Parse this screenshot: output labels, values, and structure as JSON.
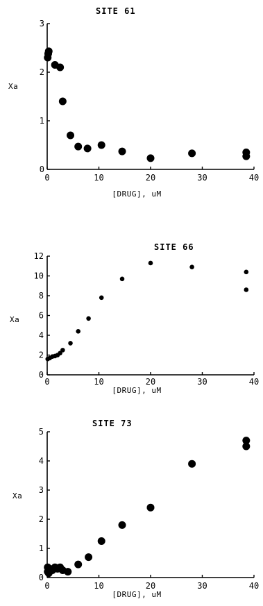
{
  "chart_data": [
    {
      "type": "scatter",
      "title": "SITE 61",
      "xlabel": "[DRUG], uM",
      "ylabel": "Xa",
      "xlim": [
        0,
        40
      ],
      "ylim": [
        0,
        3
      ],
      "xticks": [
        0,
        10,
        20,
        30,
        40
      ],
      "xtick_labels": [
        "0",
        "10",
        "20",
        "30",
        "40"
      ],
      "yticks": [
        0,
        1,
        2,
        3
      ],
      "ytick_labels": [
        "0",
        "1",
        "2",
        "3"
      ],
      "series": [
        {
          "x": [
            0.1,
            0.2,
            0.3,
            1.5,
            2.5,
            3.0,
            4.5,
            6.0,
            7.8,
            10.5,
            14.5,
            20.0,
            28.0,
            38.5,
            38.5
          ],
          "y": [
            2.3,
            2.38,
            2.43,
            2.15,
            2.1,
            1.4,
            0.7,
            0.47,
            0.43,
            0.5,
            0.37,
            0.23,
            0.33,
            0.35,
            0.27
          ]
        }
      ],
      "grid": false,
      "marker_size": 5.5
    },
    {
      "type": "scatter",
      "title": "SITE 66",
      "xlabel": "[DRUG], uM",
      "ylabel": "Xa",
      "xlim": [
        0,
        40
      ],
      "ylim": [
        0,
        12
      ],
      "xticks": [
        0,
        10,
        20,
        30,
        40
      ],
      "xtick_labels": [
        "0",
        "10",
        "20",
        "30",
        "40"
      ],
      "yticks": [
        0,
        2,
        4,
        6,
        8,
        10,
        12
      ],
      "ytick_labels": [
        "0",
        "2",
        "4",
        "6",
        "8",
        "10",
        "12"
      ],
      "series": [
        {
          "x": [
            0.1,
            0.5,
            1.0,
            1.5,
            2.0,
            2.5,
            3.0,
            4.5,
            6.0,
            8.0,
            10.5,
            14.5,
            20.0,
            28.0,
            38.5,
            38.5
          ],
          "y": [
            1.6,
            1.7,
            1.85,
            1.9,
            2.0,
            2.2,
            2.5,
            3.2,
            4.4,
            5.7,
            7.8,
            9.7,
            11.3,
            10.9,
            10.4,
            8.6
          ]
        }
      ],
      "grid": false,
      "marker_size": 3.3
    },
    {
      "type": "scatter",
      "title": "SITE 73",
      "xlabel": "[DRUG], uM",
      "ylabel": "Xa",
      "xlim": [
        0,
        40
      ],
      "ylim": [
        0,
        5
      ],
      "xticks": [
        0,
        10,
        20,
        30,
        40
      ],
      "xtick_labels": [
        "0",
        "10",
        "20",
        "30",
        "40"
      ],
      "yticks": [
        0,
        1,
        2,
        3,
        4,
        5
      ],
      "ytick_labels": [
        "0",
        "1",
        "2",
        "3",
        "4",
        "5"
      ],
      "series": [
        {
          "x": [
            0.1,
            0.1,
            0.3,
            0.5,
            1.0,
            1.5,
            2.0,
            2.5,
            3.0,
            4.0,
            6.0,
            8.0,
            10.5,
            14.5,
            20.0,
            28.0,
            38.5,
            38.5
          ],
          "y": [
            0.2,
            0.35,
            0.15,
            0.3,
            0.25,
            0.35,
            0.3,
            0.35,
            0.25,
            0.2,
            0.45,
            0.7,
            1.25,
            1.8,
            2.4,
            3.9,
            4.7,
            4.5
          ],
          "color": "#000000"
        }
      ],
      "grid": false,
      "marker_size": 5.5
    }
  ]
}
